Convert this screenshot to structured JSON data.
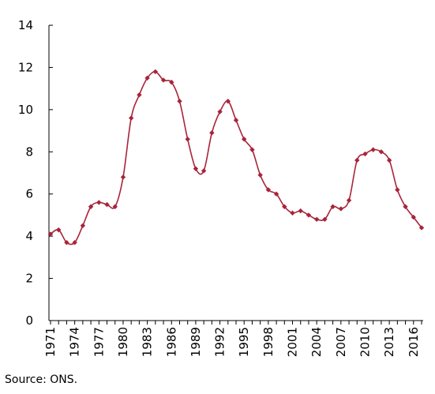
{
  "chart_data": {
    "type": "line",
    "x": [
      1971,
      1972,
      1973,
      1974,
      1975,
      1976,
      1977,
      1978,
      1979,
      1980,
      1981,
      1982,
      1983,
      1984,
      1985,
      1986,
      1987,
      1988,
      1989,
      1990,
      1991,
      1992,
      1993,
      1994,
      1995,
      1996,
      1997,
      1998,
      1999,
      2000,
      2001,
      2002,
      2003,
      2004,
      2005,
      2006,
      2007,
      2008,
      2009,
      2010,
      2011,
      2012,
      2013,
      2014,
      2015,
      2016,
      2017
    ],
    "series": [
      {
        "values": [
          4.1,
          4.3,
          3.7,
          3.7,
          4.5,
          5.4,
          5.6,
          5.5,
          5.4,
          6.8,
          9.6,
          10.7,
          11.5,
          11.8,
          11.4,
          11.3,
          10.4,
          8.6,
          7.2,
          7.1,
          8.9,
          9.9,
          10.4,
          9.5,
          8.6,
          8.1,
          6.9,
          6.2,
          6.0,
          5.4,
          5.1,
          5.2,
          5.0,
          4.8,
          4.8,
          5.4,
          5.3,
          5.7,
          7.6,
          7.9,
          8.1,
          8.0,
          7.6,
          6.2,
          5.4,
          4.9,
          4.4
        ],
        "color": "#a8243a"
      }
    ],
    "xticks": [
      "1971",
      "1974",
      "1977",
      "1980",
      "1983",
      "1986",
      "1989",
      "1992",
      "1995",
      "1998",
      "2001",
      "2004",
      "2007",
      "2010",
      "2013",
      "2016"
    ],
    "yticks": [
      "0",
      "2",
      "4",
      "6",
      "8",
      "10",
      "12",
      "14"
    ],
    "ylim": [
      0,
      14
    ],
    "xlim": [
      1971,
      2017
    ],
    "grid": false,
    "legend": "none"
  },
  "source_note": "Source: ONS."
}
